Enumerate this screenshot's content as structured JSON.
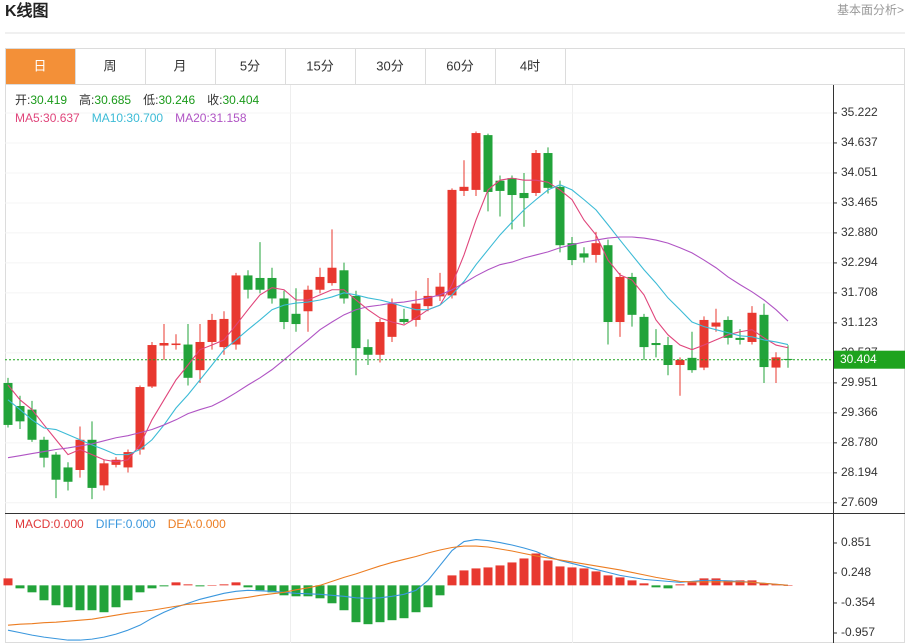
{
  "header": {
    "title": "K线图",
    "link": "基本面分析>"
  },
  "tabs": {
    "items": [
      "日",
      "周",
      "月",
      "5分",
      "15分",
      "30分",
      "60分",
      "4时"
    ],
    "active": 0
  },
  "ohlc_info": [
    {
      "label": "开:",
      "value": "30.419"
    },
    {
      "label": "高:",
      "value": "30.685"
    },
    {
      "label": "低:",
      "value": "30.246"
    },
    {
      "label": "收:",
      "value": "30.404"
    }
  ],
  "chart_data": [
    {
      "type": "candlestick",
      "open": [
        29.95,
        29.5,
        29.43,
        28.84,
        28.55,
        28.3,
        28.25,
        28.84,
        27.95,
        28.35,
        28.3,
        28.65,
        29.88,
        30.68,
        30.69,
        30.7,
        30.2,
        30.75,
        30.65,
        30.7,
        32.05,
        32.0,
        32.0,
        31.6,
        31.3,
        31.35,
        31.77,
        31.9,
        32.15,
        31.65,
        30.65,
        30.5,
        30.85,
        31.2,
        31.18,
        31.45,
        31.64,
        31.66,
        33.7,
        33.72,
        34.79,
        33.9,
        33.95,
        33.66,
        33.66,
        34.44,
        33.78,
        32.68,
        32.48,
        32.45,
        32.64,
        31.14,
        32.02,
        31.24,
        30.73,
        30.69,
        30.3,
        30.44,
        30.25,
        31.05,
        31.18,
        30.83,
        30.75,
        31.28,
        30.25,
        30.419
      ],
      "high": [
        30.05,
        29.7,
        29.6,
        28.9,
        28.6,
        28.4,
        29.1,
        29.2,
        28.45,
        28.5,
        28.65,
        29.9,
        30.75,
        31.1,
        30.9,
        31.1,
        31.1,
        31.3,
        31.35,
        32.1,
        32.15,
        32.7,
        32.2,
        31.75,
        31.8,
        31.85,
        32.2,
        32.95,
        32.3,
        31.75,
        30.8,
        31.2,
        31.6,
        31.4,
        31.75,
        32.0,
        32.1,
        33.75,
        34.3,
        34.86,
        34.82,
        34.0,
        34.0,
        34.05,
        34.5,
        34.55,
        33.9,
        32.8,
        32.6,
        32.9,
        32.75,
        32.1,
        32.1,
        31.3,
        31.0,
        30.85,
        30.45,
        30.95,
        31.25,
        31.4,
        31.25,
        31.0,
        31.45,
        31.5,
        30.55,
        30.685
      ],
      "low": [
        29.08,
        29.05,
        28.8,
        28.3,
        27.7,
        27.85,
        28.1,
        27.68,
        27.85,
        28.3,
        28.2,
        28.55,
        29.85,
        30.4,
        30.6,
        29.9,
        29.95,
        30.6,
        30.5,
        30.6,
        31.6,
        31.7,
        31.5,
        31.0,
        30.95,
        30.95,
        31.7,
        31.85,
        31.5,
        30.1,
        30.3,
        30.35,
        30.75,
        31.1,
        31.05,
        31.35,
        31.55,
        31.6,
        33.6,
        33.6,
        33.3,
        33.2,
        32.95,
        33.0,
        33.6,
        33.65,
        32.5,
        32.25,
        32.3,
        32.3,
        30.7,
        30.85,
        31.05,
        30.4,
        30.45,
        30.1,
        29.7,
        30.15,
        30.2,
        30.95,
        30.7,
        30.7,
        30.7,
        29.95,
        29.95,
        30.246
      ],
      "close": [
        29.13,
        29.2,
        28.84,
        28.49,
        28.06,
        28.02,
        28.84,
        27.9,
        28.38,
        28.45,
        28.6,
        29.87,
        30.69,
        30.73,
        30.72,
        30.05,
        30.75,
        31.18,
        31.2,
        32.05,
        31.77,
        31.77,
        31.6,
        31.14,
        31.1,
        31.77,
        32.02,
        32.2,
        31.6,
        30.63,
        30.5,
        31.14,
        31.5,
        31.14,
        31.5,
        31.65,
        31.83,
        33.72,
        33.78,
        34.83,
        33.68,
        33.7,
        33.62,
        33.56,
        34.44,
        33.76,
        32.64,
        32.35,
        32.4,
        32.68,
        31.14,
        32.02,
        31.28,
        30.65,
        30.69,
        30.3,
        30.4,
        30.2,
        31.18,
        31.13,
        30.83,
        30.79,
        31.32,
        30.26,
        30.45,
        30.404
      ],
      "up_color": "#e8382f",
      "down_color": "#22a33a",
      "ylim": [
        27.41,
        35.71
      ],
      "yticks": [
        35.222,
        34.637,
        34.051,
        33.465,
        {
          "value": 32.88,
          "label": "32.880"
        },
        32.294,
        31.708,
        31.123,
        30.537,
        29.951,
        29.366,
        {
          "value": 28.78,
          "label": "28.780"
        },
        28.194,
        27.609
      ],
      "grid": true,
      "last_price": 30.404,
      "last_price_color": "#1ea31e",
      "series": [
        {
          "name": "MA5:",
          "legend_value": "30.637",
          "color": "#e0457b",
          "values": [
            29.91,
            29.62,
            29.43,
            29.13,
            28.84,
            28.55,
            28.65,
            28.55,
            28.45,
            28.41,
            28.45,
            28.74,
            29.23,
            29.62,
            30.01,
            30.3,
            30.6,
            30.69,
            30.79,
            31.08,
            31.38,
            31.67,
            31.81,
            31.77,
            31.57,
            31.57,
            31.67,
            31.77,
            31.77,
            31.57,
            31.38,
            31.22,
            31.14,
            31.08,
            31.22,
            31.38,
            31.47,
            31.87,
            32.45,
            33.13,
            33.72,
            33.91,
            33.95,
            33.91,
            33.91,
            33.87,
            33.72,
            33.53,
            33.13,
            32.84,
            32.35,
            32.06,
            31.96,
            31.67,
            31.18,
            30.89,
            30.69,
            30.6,
            30.69,
            30.79,
            30.89,
            30.95,
            30.99,
            30.83,
            30.69,
            30.637
          ]
        },
        {
          "name": "MA10:",
          "legend_value": "30.700",
          "color": "#3cbbd6",
          "values": [
            29.62,
            29.43,
            29.23,
            29.07,
            29.04,
            28.94,
            28.84,
            28.74,
            28.65,
            28.55,
            28.55,
            28.65,
            28.84,
            29.13,
            29.46,
            29.72,
            30.01,
            30.3,
            30.6,
            30.79,
            30.99,
            31.18,
            31.38,
            31.47,
            31.51,
            31.53,
            31.57,
            31.63,
            31.71,
            31.67,
            31.61,
            31.57,
            31.51,
            31.44,
            31.38,
            31.38,
            31.47,
            31.67,
            31.93,
            32.26,
            32.55,
            32.84,
            33.09,
            33.33,
            33.53,
            33.72,
            33.82,
            33.72,
            33.53,
            33.33,
            33.04,
            32.74,
            32.45,
            32.16,
            31.9,
            31.61,
            31.38,
            31.14,
            31.05,
            30.99,
            30.93,
            30.87,
            30.85,
            30.79,
            30.75,
            30.7
          ]
        },
        {
          "name": "MA20:",
          "legend_value": "31.158",
          "color": "#b054c4",
          "values": [
            28.49,
            28.53,
            28.57,
            28.61,
            28.65,
            28.68,
            28.72,
            28.76,
            28.82,
            28.88,
            28.92,
            28.98,
            29.04,
            29.13,
            29.23,
            29.35,
            29.43,
            29.5,
            29.62,
            29.76,
            29.91,
            30.05,
            30.21,
            30.4,
            30.6,
            30.79,
            30.99,
            31.14,
            31.28,
            31.38,
            31.44,
            31.47,
            31.51,
            31.53,
            31.57,
            31.61,
            31.67,
            31.77,
            31.9,
            32.04,
            32.16,
            32.26,
            32.31,
            32.39,
            32.45,
            32.51,
            32.59,
            32.65,
            32.7,
            32.74,
            32.78,
            32.8,
            32.8,
            32.78,
            32.74,
            32.68,
            32.59,
            32.49,
            32.35,
            32.2,
            32.02,
            31.87,
            31.73,
            31.57,
            31.38,
            31.158
          ]
        }
      ]
    },
    {
      "type": "macd",
      "ylim": [
        -1.158,
        1.413
      ],
      "yticks": [
        0.851,
        0.248,
        -0.354,
        -0.957
      ],
      "histogram": {
        "name": "MACD:",
        "legend_value": "0.000",
        "color": "#e0393a",
        "up_color": "#e8382f",
        "down_color": "#22a33a",
        "values": [
          0.14,
          -0.06,
          -0.14,
          -0.3,
          -0.4,
          -0.44,
          -0.5,
          -0.5,
          -0.54,
          -0.44,
          -0.3,
          -0.14,
          -0.06,
          -0.02,
          0.06,
          0.02,
          -0.02,
          0,
          0.02,
          0.06,
          -0.04,
          -0.1,
          -0.14,
          -0.2,
          -0.22,
          -0.22,
          -0.26,
          -0.36,
          -0.5,
          -0.74,
          -0.78,
          -0.74,
          -0.7,
          -0.66,
          -0.54,
          -0.44,
          -0.2,
          0.2,
          0.3,
          0.34,
          0.36,
          0.4,
          0.46,
          0.54,
          0.64,
          0.5,
          0.38,
          0.36,
          0.34,
          0.28,
          0.2,
          0.16,
          0.1,
          0.04,
          -0.04,
          -0.06,
          0.02,
          0.06,
          0.14,
          0.14,
          0.1,
          0.1,
          0.1,
          0.04,
          0.02,
          0
        ]
      },
      "series": [
        {
          "name": "DIFF:",
          "legend_value": "0.000",
          "color": "#3a97dd",
          "values": [
            -0.9,
            -0.95,
            -1.0,
            -1.04,
            -1.07,
            -1.1,
            -1.1,
            -1.08,
            -1.04,
            -0.98,
            -0.9,
            -0.8,
            -0.66,
            -0.54,
            -0.44,
            -0.36,
            -0.28,
            -0.22,
            -0.16,
            -0.12,
            -0.1,
            -0.11,
            -0.12,
            -0.14,
            -0.16,
            -0.17,
            -0.18,
            -0.2,
            -0.22,
            -0.25,
            -0.26,
            -0.25,
            -0.22,
            -0.18,
            -0.1,
            0.1,
            0.4,
            0.7,
            0.88,
            0.92,
            0.9,
            0.86,
            0.81,
            0.75,
            0.68,
            0.58,
            0.5,
            0.44,
            0.38,
            0.32,
            0.26,
            0.2,
            0.16,
            0.12,
            0.1,
            0.08,
            0.06,
            0.08,
            0.1,
            0.1,
            0.09,
            0.08,
            0.06,
            0.04,
            0.02,
            0
          ]
        },
        {
          "name": "DEA:",
          "legend_value": "0.000",
          "color": "#ec7d22",
          "values": [
            -0.8,
            -0.78,
            -0.77,
            -0.75,
            -0.74,
            -0.72,
            -0.7,
            -0.68,
            -0.64,
            -0.6,
            -0.56,
            -0.53,
            -0.5,
            -0.46,
            -0.42,
            -0.38,
            -0.36,
            -0.33,
            -0.3,
            -0.27,
            -0.24,
            -0.2,
            -0.17,
            -0.14,
            -0.09,
            -0.05,
            0.0,
            0.08,
            0.16,
            0.23,
            0.31,
            0.39,
            0.46,
            0.52,
            0.58,
            0.65,
            0.71,
            0.76,
            0.79,
            0.79,
            0.77,
            0.73,
            0.69,
            0.64,
            0.59,
            0.55,
            0.51,
            0.47,
            0.43,
            0.39,
            0.35,
            0.31,
            0.26,
            0.21,
            0.16,
            0.12,
            0.08,
            0.07,
            0.07,
            0.07,
            0.07,
            0.07,
            0.06,
            0.04,
            0.02,
            0
          ]
        }
      ]
    }
  ]
}
